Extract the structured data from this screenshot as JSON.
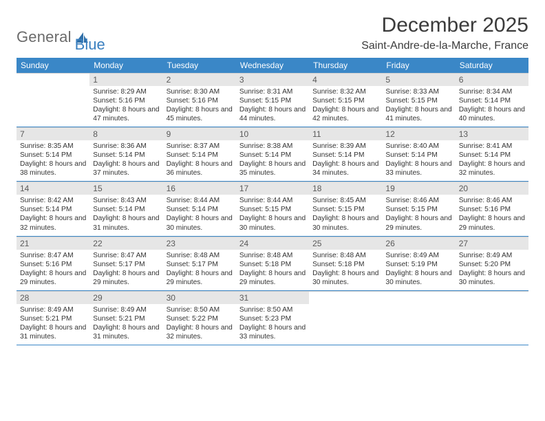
{
  "brand": {
    "part1": "General",
    "part2": "Blue"
  },
  "title": "December 2025",
  "location": "Saint-Andre-de-la-Marche, France",
  "colors": {
    "header_bg": "#3a87c7",
    "header_text": "#ffffff",
    "daynum_bg": "#e6e6e6",
    "week_border": "#3a87c7",
    "cell_border": "#cfcfcf",
    "logo_gray": "#6b6b6b",
    "logo_blue": "#3a7fbf",
    "text": "#333333"
  },
  "dayNames": [
    "Sunday",
    "Monday",
    "Tuesday",
    "Wednesday",
    "Thursday",
    "Friday",
    "Saturday"
  ],
  "weeks": [
    [
      null,
      {
        "n": "1",
        "sr": "8:29 AM",
        "ss": "5:16 PM",
        "dl": "8 hours and 47 minutes."
      },
      {
        "n": "2",
        "sr": "8:30 AM",
        "ss": "5:16 PM",
        "dl": "8 hours and 45 minutes."
      },
      {
        "n": "3",
        "sr": "8:31 AM",
        "ss": "5:15 PM",
        "dl": "8 hours and 44 minutes."
      },
      {
        "n": "4",
        "sr": "8:32 AM",
        "ss": "5:15 PM",
        "dl": "8 hours and 42 minutes."
      },
      {
        "n": "5",
        "sr": "8:33 AM",
        "ss": "5:15 PM",
        "dl": "8 hours and 41 minutes."
      },
      {
        "n": "6",
        "sr": "8:34 AM",
        "ss": "5:14 PM",
        "dl": "8 hours and 40 minutes."
      }
    ],
    [
      {
        "n": "7",
        "sr": "8:35 AM",
        "ss": "5:14 PM",
        "dl": "8 hours and 38 minutes."
      },
      {
        "n": "8",
        "sr": "8:36 AM",
        "ss": "5:14 PM",
        "dl": "8 hours and 37 minutes."
      },
      {
        "n": "9",
        "sr": "8:37 AM",
        "ss": "5:14 PM",
        "dl": "8 hours and 36 minutes."
      },
      {
        "n": "10",
        "sr": "8:38 AM",
        "ss": "5:14 PM",
        "dl": "8 hours and 35 minutes."
      },
      {
        "n": "11",
        "sr": "8:39 AM",
        "ss": "5:14 PM",
        "dl": "8 hours and 34 minutes."
      },
      {
        "n": "12",
        "sr": "8:40 AM",
        "ss": "5:14 PM",
        "dl": "8 hours and 33 minutes."
      },
      {
        "n": "13",
        "sr": "8:41 AM",
        "ss": "5:14 PM",
        "dl": "8 hours and 32 minutes."
      }
    ],
    [
      {
        "n": "14",
        "sr": "8:42 AM",
        "ss": "5:14 PM",
        "dl": "8 hours and 32 minutes."
      },
      {
        "n": "15",
        "sr": "8:43 AM",
        "ss": "5:14 PM",
        "dl": "8 hours and 31 minutes."
      },
      {
        "n": "16",
        "sr": "8:44 AM",
        "ss": "5:14 PM",
        "dl": "8 hours and 30 minutes."
      },
      {
        "n": "17",
        "sr": "8:44 AM",
        "ss": "5:15 PM",
        "dl": "8 hours and 30 minutes."
      },
      {
        "n": "18",
        "sr": "8:45 AM",
        "ss": "5:15 PM",
        "dl": "8 hours and 30 minutes."
      },
      {
        "n": "19",
        "sr": "8:46 AM",
        "ss": "5:15 PM",
        "dl": "8 hours and 29 minutes."
      },
      {
        "n": "20",
        "sr": "8:46 AM",
        "ss": "5:16 PM",
        "dl": "8 hours and 29 minutes."
      }
    ],
    [
      {
        "n": "21",
        "sr": "8:47 AM",
        "ss": "5:16 PM",
        "dl": "8 hours and 29 minutes."
      },
      {
        "n": "22",
        "sr": "8:47 AM",
        "ss": "5:17 PM",
        "dl": "8 hours and 29 minutes."
      },
      {
        "n": "23",
        "sr": "8:48 AM",
        "ss": "5:17 PM",
        "dl": "8 hours and 29 minutes."
      },
      {
        "n": "24",
        "sr": "8:48 AM",
        "ss": "5:18 PM",
        "dl": "8 hours and 29 minutes."
      },
      {
        "n": "25",
        "sr": "8:48 AM",
        "ss": "5:18 PM",
        "dl": "8 hours and 30 minutes."
      },
      {
        "n": "26",
        "sr": "8:49 AM",
        "ss": "5:19 PM",
        "dl": "8 hours and 30 minutes."
      },
      {
        "n": "27",
        "sr": "8:49 AM",
        "ss": "5:20 PM",
        "dl": "8 hours and 30 minutes."
      }
    ],
    [
      {
        "n": "28",
        "sr": "8:49 AM",
        "ss": "5:21 PM",
        "dl": "8 hours and 31 minutes."
      },
      {
        "n": "29",
        "sr": "8:49 AM",
        "ss": "5:21 PM",
        "dl": "8 hours and 31 minutes."
      },
      {
        "n": "30",
        "sr": "8:50 AM",
        "ss": "5:22 PM",
        "dl": "8 hours and 32 minutes."
      },
      {
        "n": "31",
        "sr": "8:50 AM",
        "ss": "5:23 PM",
        "dl": "8 hours and 33 minutes."
      },
      null,
      null,
      null
    ]
  ],
  "labels": {
    "sunrise": "Sunrise:",
    "sunset": "Sunset:",
    "daylight": "Daylight:"
  }
}
